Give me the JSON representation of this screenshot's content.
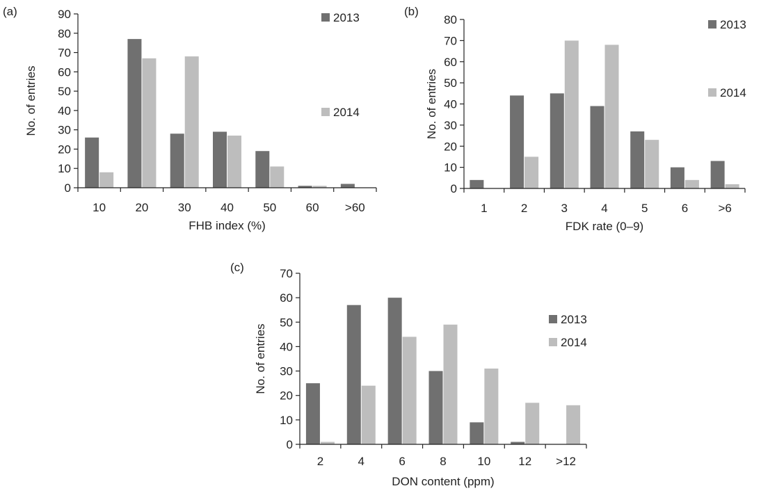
{
  "colors": {
    "series_2013": "#707070",
    "series_2014": "#bdbdbd",
    "axis": "#222222"
  },
  "chart_data": [
    {
      "panel_label": "(a)",
      "type": "bar",
      "xlabel": "FHB index (%)",
      "ylabel": "No. of entries",
      "categories": [
        "10",
        "20",
        "30",
        "40",
        "50",
        "60",
        ">60"
      ],
      "ylim": [
        0,
        90
      ],
      "yticks": [
        0,
        10,
        20,
        30,
        40,
        50,
        60,
        70,
        80,
        90
      ],
      "grid": false,
      "legend_position": "right",
      "series": [
        {
          "name": "2013",
          "values": [
            26,
            77,
            28,
            29,
            19,
            1,
            2
          ]
        },
        {
          "name": "2014",
          "values": [
            8,
            67,
            68,
            27,
            11,
            1,
            0
          ]
        }
      ]
    },
    {
      "panel_label": "(b)",
      "type": "bar",
      "xlabel": "FDK rate (0–9)",
      "ylabel": "No. of entries",
      "categories": [
        "1",
        "2",
        "3",
        "4",
        "5",
        "6",
        ">6"
      ],
      "ylim": [
        0,
        80
      ],
      "yticks": [
        0,
        10,
        20,
        30,
        40,
        50,
        60,
        70,
        80
      ],
      "grid": false,
      "legend_position": "right",
      "series": [
        {
          "name": "2013",
          "values": [
            4,
            44,
            45,
            39,
            27,
            10,
            13
          ]
        },
        {
          "name": "2014",
          "values": [
            0,
            15,
            70,
            68,
            23,
            4,
            2
          ]
        }
      ]
    },
    {
      "panel_label": "(c)",
      "type": "bar",
      "xlabel": "DON content (ppm)",
      "ylabel": "No. of entries",
      "categories": [
        "2",
        "4",
        "6",
        "8",
        "10",
        "12",
        ">12"
      ],
      "ylim": [
        0,
        70
      ],
      "yticks": [
        0,
        10,
        20,
        30,
        40,
        50,
        60,
        70
      ],
      "grid": false,
      "legend_position": "right",
      "series": [
        {
          "name": "2013",
          "values": [
            25,
            57,
            60,
            30,
            9,
            1,
            0
          ]
        },
        {
          "name": "2014",
          "values": [
            1,
            24,
            44,
            49,
            31,
            17,
            16
          ]
        }
      ]
    }
  ]
}
